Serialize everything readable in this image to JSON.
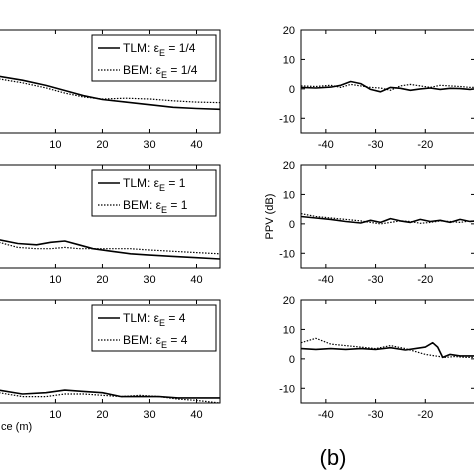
{
  "panel_label": "(b)",
  "chart_data": [
    {
      "id": "left-1",
      "type": "line",
      "xlabel": "",
      "ylabel": "",
      "xlim": [
        -2,
        45
      ],
      "ylim": [
        -20,
        20
      ],
      "xticks": [
        10,
        20,
        30,
        40
      ],
      "yticks": [],
      "legend": {
        "placement": "top-right",
        "entries": [
          {
            "text": "TLM: ε",
            "sub": "E",
            "suffix": " = 1/4",
            "style": "solid"
          },
          {
            "text": "BEM: ε",
            "sub": "E",
            "suffix": " = 1/4",
            "style": "dotted"
          }
        ]
      },
      "series": [
        {
          "style": "solid",
          "x": [
            -2,
            3,
            8,
            12,
            16,
            20,
            25,
            30,
            35,
            40,
            45
          ],
          "y": [
            2,
            0.5,
            -1.5,
            -3.5,
            -5.5,
            -7,
            -8,
            -9,
            -10,
            -10.5,
            -10.8
          ]
        },
        {
          "style": "dotted",
          "x": [
            -2,
            3,
            8,
            12,
            16,
            20,
            25,
            30,
            35,
            40,
            45
          ],
          "y": [
            1,
            -0.5,
            -2.5,
            -4.5,
            -6,
            -6.8,
            -6.5,
            -6.8,
            -7.5,
            -8,
            -8.2
          ]
        }
      ]
    },
    {
      "id": "left-2",
      "type": "line",
      "xlabel": "",
      "ylabel": "",
      "xlim": [
        -2,
        45
      ],
      "ylim": [
        -20,
        20
      ],
      "xticks": [
        10,
        20,
        30,
        40
      ],
      "yticks": [],
      "legend": {
        "placement": "top-right",
        "entries": [
          {
            "text": "TLM: ε",
            "sub": "E",
            "suffix": " = 1",
            "style": "solid"
          },
          {
            "text": "BEM: ε",
            "sub": "E",
            "suffix": " = 1",
            "style": "dotted"
          }
        ]
      },
      "series": [
        {
          "style": "solid",
          "x": [
            -2,
            2,
            6,
            9,
            12,
            15,
            18,
            22,
            26,
            30,
            35,
            40,
            45
          ],
          "y": [
            -9,
            -10.5,
            -11,
            -10,
            -9.5,
            -11,
            -12.5,
            -13.5,
            -14.5,
            -15,
            -15.5,
            -16,
            -16.5
          ]
        },
        {
          "style": "dotted",
          "x": [
            -2,
            2,
            6,
            9,
            12,
            15,
            18,
            22,
            26,
            30,
            35,
            40,
            45
          ],
          "y": [
            -10,
            -12,
            -12.5,
            -12.5,
            -12,
            -12.5,
            -12.5,
            -12.5,
            -12.5,
            -13,
            -13.5,
            -14,
            -14.5
          ]
        }
      ]
    },
    {
      "id": "left-3",
      "type": "line",
      "xlabel": "ce (m)",
      "ylabel": "",
      "xlim": [
        -2,
        45
      ],
      "ylim": [
        -20,
        20
      ],
      "xticks": [
        10,
        20,
        30,
        40
      ],
      "yticks": [],
      "legend": {
        "placement": "top-right",
        "entries": [
          {
            "text": "TLM: ε",
            "sub": "E",
            "suffix": " = 4",
            "style": "solid"
          },
          {
            "text": "BEM: ε",
            "sub": "E",
            "suffix": " = 4",
            "style": "dotted"
          }
        ]
      },
      "series": [
        {
          "style": "solid",
          "x": [
            -2,
            3,
            8,
            12,
            16,
            20,
            24,
            28,
            32,
            36,
            40,
            45
          ],
          "y": [
            -15,
            -16.5,
            -16,
            -15,
            -15.5,
            -16,
            -17.5,
            -17.5,
            -17.5,
            -18,
            -18,
            -18
          ]
        },
        {
          "style": "dotted",
          "x": [
            -2,
            3,
            8,
            12,
            16,
            20,
            24,
            28,
            32,
            36,
            40,
            45
          ],
          "y": [
            -16,
            -17.5,
            -17.5,
            -16.5,
            -16.5,
            -17,
            -17.5,
            -17,
            -17.5,
            -18.5,
            -19,
            -20
          ]
        }
      ]
    },
    {
      "id": "right-1",
      "type": "line",
      "xlabel": "",
      "ylabel": "",
      "xlim": [
        -45,
        -10
      ],
      "ylim": [
        -15,
        20
      ],
      "xticks": [
        -40,
        -30,
        -20
      ],
      "yticks": [
        -10,
        0,
        10,
        20
      ],
      "series": [
        {
          "style": "solid",
          "x": [
            -45,
            -42,
            -39,
            -37,
            -35,
            -33,
            -31,
            -29,
            -27,
            -25,
            -23,
            -21,
            -19,
            -17,
            -15,
            -13,
            -11,
            -10
          ],
          "y": [
            0.5,
            0.3,
            0.6,
            1.2,
            2.5,
            1.8,
            -0.2,
            -1,
            0.5,
            0.2,
            -0.5,
            0,
            0.3,
            -0.2,
            0.2,
            0.1,
            -0.2,
            0
          ]
        },
        {
          "style": "dotted",
          "x": [
            -45,
            -42,
            -39,
            -37,
            -35,
            -33,
            -31,
            -29,
            -27,
            -25,
            -23,
            -21,
            -19,
            -17,
            -15,
            -13,
            -11,
            -10
          ],
          "y": [
            1,
            0.8,
            1.2,
            0.5,
            1.5,
            1,
            0.5,
            0.3,
            -0.5,
            1,
            1.5,
            1,
            0.5,
            1.2,
            1,
            0.8,
            0.5,
            0.5
          ]
        }
      ]
    },
    {
      "id": "right-2",
      "type": "line",
      "xlabel": "",
      "ylabel": "PPV (dB)",
      "xlim": [
        -45,
        -10
      ],
      "ylim": [
        -15,
        20
      ],
      "xticks": [
        -40,
        -30,
        -20
      ],
      "yticks": [
        -10,
        0,
        10,
        20
      ],
      "series": [
        {
          "style": "solid",
          "x": [
            -45,
            -42,
            -39,
            -36,
            -33,
            -31,
            -29,
            -27,
            -25,
            -23,
            -21,
            -19,
            -17,
            -15,
            -13,
            -11,
            -10
          ],
          "y": [
            2.5,
            2,
            1.5,
            0.8,
            0.3,
            1.2,
            0.5,
            1.8,
            1,
            0.5,
            1.5,
            0.8,
            1.2,
            0.5,
            1.5,
            0.8,
            1
          ]
        },
        {
          "style": "dotted",
          "x": [
            -45,
            -42,
            -39,
            -36,
            -33,
            -31,
            -29,
            -27,
            -25,
            -23,
            -21,
            -19,
            -17,
            -15,
            -13,
            -11,
            -10
          ],
          "y": [
            3.5,
            2.5,
            2,
            1.5,
            1,
            0.5,
            0,
            0.5,
            1,
            0.8,
            0.2,
            0.5,
            1,
            0.8,
            0.5,
            1,
            0.8
          ]
        }
      ]
    },
    {
      "id": "right-3",
      "type": "line",
      "xlabel": "",
      "ylabel": "",
      "xlim": [
        -45,
        -10
      ],
      "ylim": [
        -15,
        20
      ],
      "xticks": [
        -40,
        -30,
        -20
      ],
      "yticks": [
        -10,
        0,
        10,
        20
      ],
      "series": [
        {
          "style": "solid",
          "x": [
            -45,
            -42,
            -39,
            -36,
            -33,
            -30,
            -27,
            -24,
            -22,
            -20,
            -18.5,
            -17.5,
            -16.5,
            -15,
            -13,
            -11,
            -10
          ],
          "y": [
            3.5,
            3.2,
            3.5,
            3.2,
            3.5,
            3.2,
            3.8,
            3,
            3.5,
            4,
            5.5,
            4,
            0.5,
            1.5,
            1,
            1,
            1
          ]
        },
        {
          "style": "dotted",
          "x": [
            -45,
            -42,
            -39,
            -36,
            -33,
            -30,
            -27,
            -24,
            -22,
            -20,
            -18,
            -16,
            -14,
            -12,
            -10
          ],
          "y": [
            5.5,
            7,
            5,
            4.5,
            4,
            3.5,
            4.5,
            3.5,
            2.5,
            1.5,
            1,
            0.5,
            0.8,
            0.5,
            0.5
          ]
        }
      ]
    }
  ]
}
